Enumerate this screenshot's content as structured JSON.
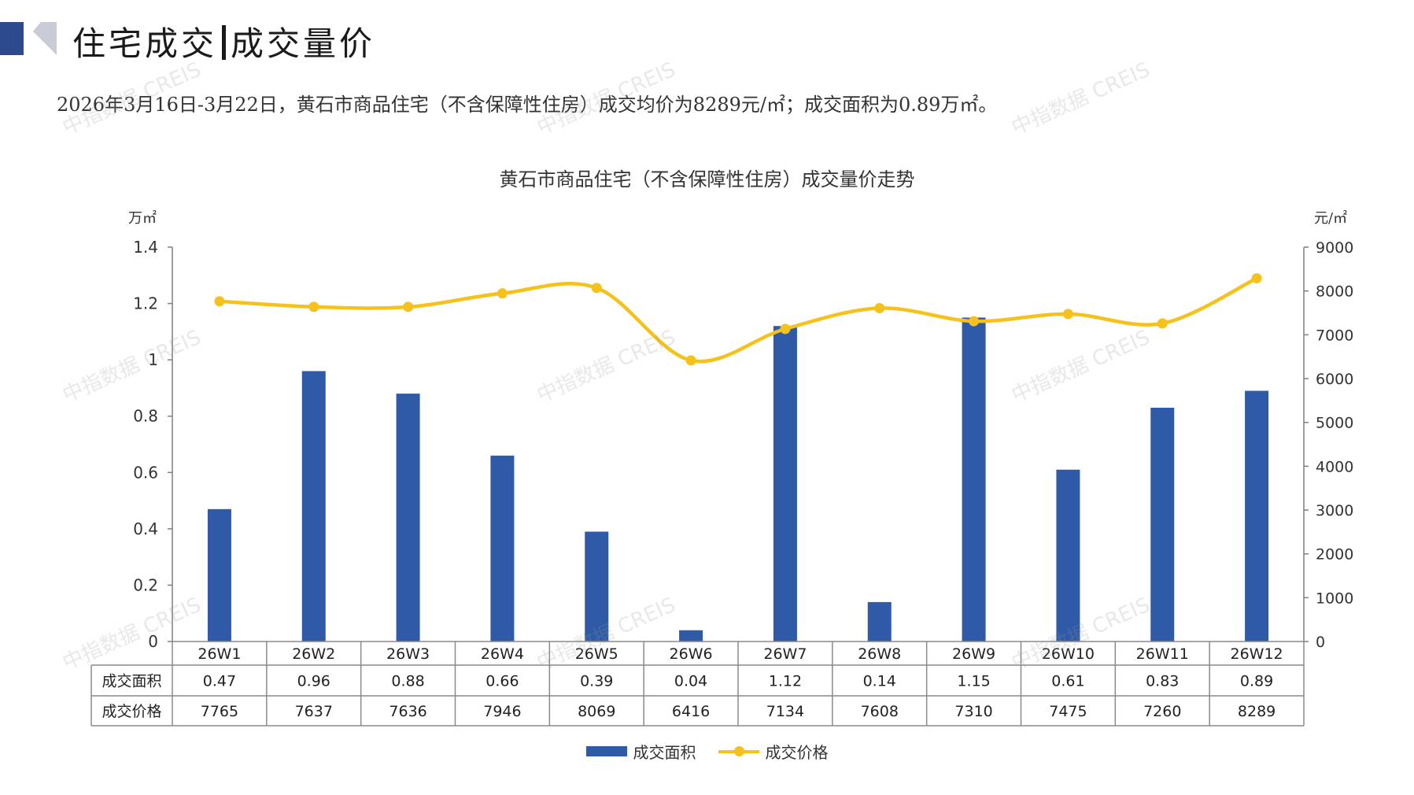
{
  "header": {
    "title_left": "住宅成交",
    "title_right": "成交量价"
  },
  "summary": "2026年3月16日-3月22日，黄石市商品住宅（不含保障性住房）成交均价为8289元/㎡；成交面积为0.89万㎡。",
  "watermark": "中指数据 CREIS",
  "colors": {
    "bar": "#2f5aa8",
    "line": "#f5c21b",
    "logo_dark": "#2e4a8f",
    "logo_light": "#c9ccd6"
  },
  "chart_data": {
    "type": "bar",
    "title": "黄石市商品住宅（不含保障性住房）成交量价走势",
    "ylabel_left": "万㎡",
    "ylabel_right": "元/㎡",
    "categories": [
      "26W1",
      "26W2",
      "26W3",
      "26W4",
      "26W5",
      "26W6",
      "26W7",
      "26W8",
      "26W9",
      "26W10",
      "26W11",
      "26W12"
    ],
    "series": [
      {
        "name": "成交面积",
        "type": "bar",
        "axis": "left",
        "values": [
          0.47,
          0.96,
          0.88,
          0.66,
          0.39,
          0.04,
          1.12,
          0.14,
          1.15,
          0.61,
          0.83,
          0.89
        ]
      },
      {
        "name": "成交价格",
        "type": "line",
        "axis": "right",
        "values": [
          7765,
          7637,
          7636,
          7946,
          8069,
          6416,
          7134,
          7608,
          7310,
          7475,
          7260,
          8289
        ]
      }
    ],
    "ylim_left": [
      0,
      1.4
    ],
    "yticks_left": [
      "0",
      "0.2",
      "0.4",
      "0.6",
      "0.8",
      "1",
      "1.2",
      "1.4"
    ],
    "ylim_right": [
      0,
      9000
    ],
    "yticks_right": [
      "0",
      "1000",
      "2000",
      "3000",
      "4000",
      "5000",
      "6000",
      "7000",
      "8000",
      "9000"
    ],
    "table_rows": [
      {
        "label": "成交面积",
        "values": [
          "0.47",
          "0.96",
          "0.88",
          "0.66",
          "0.39",
          "0.04",
          "1.12",
          "0.14",
          "1.15",
          "0.61",
          "0.83",
          "0.89"
        ]
      },
      {
        "label": "成交价格",
        "values": [
          "7765",
          "7637",
          "7636",
          "7946",
          "8069",
          "6416",
          "7134",
          "7608",
          "7310",
          "7475",
          "7260",
          "8289"
        ]
      }
    ],
    "legend": [
      "成交面积",
      "成交价格"
    ],
    "legend_position": "bottom",
    "grid": false
  }
}
